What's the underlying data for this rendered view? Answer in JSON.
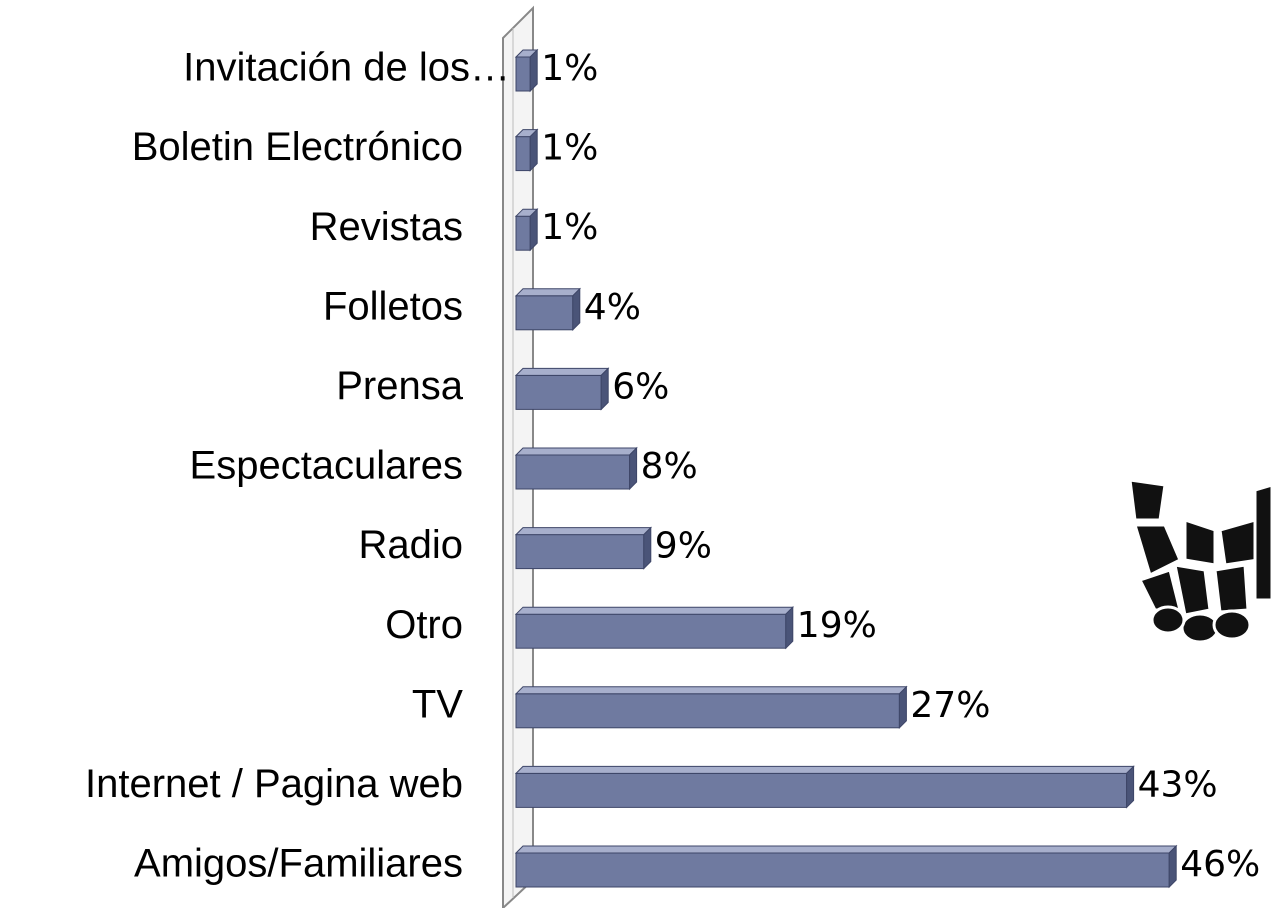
{
  "chart_data": {
    "type": "bar",
    "orientation": "horizontal",
    "categories": [
      "Invitación de los…",
      "Boletin Electrónico",
      "Revistas",
      "Folletos",
      "Prensa",
      "Espectaculares",
      "Radio",
      "Otro",
      "TV",
      "Internet / Pagina web",
      "Amigos/Familiares"
    ],
    "values": [
      1,
      1,
      1,
      4,
      6,
      8,
      9,
      19,
      27,
      43,
      46
    ],
    "value_labels": [
      "1%",
      "1%",
      "1%",
      "4%",
      "6%",
      "8%",
      "9%",
      "19%",
      "27%",
      "43%",
      "46%"
    ],
    "color": "#6f7aa0"
  }
}
